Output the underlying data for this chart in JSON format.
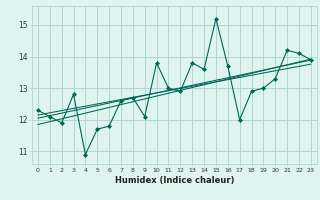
{
  "x": [
    0,
    1,
    2,
    3,
    4,
    5,
    6,
    7,
    8,
    9,
    10,
    11,
    12,
    13,
    14,
    15,
    16,
    17,
    18,
    19,
    20,
    21,
    22,
    23
  ],
  "y_main": [
    12.3,
    12.1,
    11.9,
    12.8,
    10.9,
    11.7,
    11.8,
    12.6,
    12.7,
    12.1,
    13.8,
    13.0,
    12.9,
    13.8,
    13.6,
    15.2,
    13.7,
    12.0,
    12.9,
    13.0,
    13.3,
    14.2,
    14.1,
    13.9
  ],
  "y_trend1": [
    12.15,
    12.22,
    12.29,
    12.36,
    12.43,
    12.5,
    12.57,
    12.64,
    12.71,
    12.78,
    12.85,
    12.92,
    12.99,
    13.06,
    13.13,
    13.2,
    13.27,
    13.34,
    13.41,
    13.48,
    13.55,
    13.62,
    13.69,
    13.76
  ],
  "y_trend2": [
    12.05,
    12.13,
    12.21,
    12.29,
    12.37,
    12.45,
    12.53,
    12.61,
    12.69,
    12.77,
    12.85,
    12.93,
    13.01,
    13.09,
    13.17,
    13.25,
    13.33,
    13.41,
    13.49,
    13.57,
    13.65,
    13.73,
    13.81,
    13.89
  ],
  "y_trend3": [
    11.85,
    11.94,
    12.03,
    12.12,
    12.21,
    12.3,
    12.39,
    12.48,
    12.57,
    12.66,
    12.75,
    12.84,
    12.93,
    13.02,
    13.11,
    13.2,
    13.29,
    13.38,
    13.47,
    13.56,
    13.65,
    13.74,
    13.83,
    13.92
  ],
  "bg_color": "#dff4ef",
  "grid_color": "#afd8cf",
  "line_color": "#006655",
  "xlabel": "Humidex (Indice chaleur)",
  "ylim": [
    10.6,
    15.6
  ],
  "xlim": [
    -0.5,
    23.5
  ],
  "yticks": [
    11,
    12,
    13,
    14,
    15
  ],
  "xticks": [
    0,
    1,
    2,
    3,
    4,
    5,
    6,
    7,
    8,
    9,
    10,
    11,
    12,
    13,
    14,
    15,
    16,
    17,
    18,
    19,
    20,
    21,
    22,
    23
  ]
}
